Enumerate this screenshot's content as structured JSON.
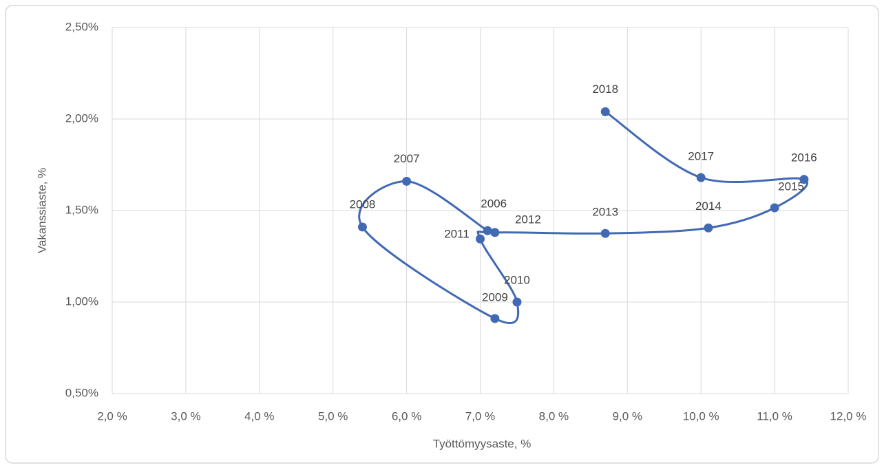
{
  "chart_data": {
    "type": "scatter",
    "x_label": "Työttömyysaste, %",
    "y_label": "Vakanssiaste, %",
    "x": [
      7.1,
      6.0,
      5.4,
      7.2,
      7.5,
      7.0,
      7.2,
      8.7,
      10.1,
      11.0,
      11.4,
      10.0,
      8.7
    ],
    "values": [
      1.39,
      1.66,
      1.41,
      0.91,
      1.0,
      1.345,
      1.38,
      1.375,
      1.405,
      1.515,
      1.67,
      1.68,
      2.04
    ],
    "point_labels": [
      "2006",
      "2007",
      "2008",
      "2009",
      "2010",
      "2011",
      "2012",
      "2013",
      "2014",
      "2015",
      "2016",
      "2017",
      "2018"
    ],
    "color": "#4169b4",
    "smooth": true,
    "grid": true,
    "xlim": [
      2,
      12
    ],
    "ylim": [
      0.5,
      2.5
    ],
    "xticks": [
      {
        "value": 2,
        "label": "2,0 %"
      },
      {
        "value": 3,
        "label": "3,0 %"
      },
      {
        "value": 4,
        "label": "4,0 %"
      },
      {
        "value": 5,
        "label": "5,0 %"
      },
      {
        "value": 6,
        "label": "6,0 %"
      },
      {
        "value": 7,
        "label": "7,0 %"
      },
      {
        "value": 8,
        "label": "8,0 %"
      },
      {
        "value": 9,
        "label": "9,0 %"
      },
      {
        "value": 10,
        "label": "10,0 %"
      },
      {
        "value": 11,
        "label": "11,0 %"
      },
      {
        "value": 12,
        "label": "12,0 %"
      }
    ],
    "yticks": [
      {
        "value": 0.5,
        "label": "0,50%"
      },
      {
        "value": 1.0,
        "label": "1,00%"
      },
      {
        "value": 1.5,
        "label": "1,50%"
      },
      {
        "value": 2.0,
        "label": "2,00%"
      },
      {
        "value": 2.5,
        "label": "2,50%"
      }
    ]
  }
}
